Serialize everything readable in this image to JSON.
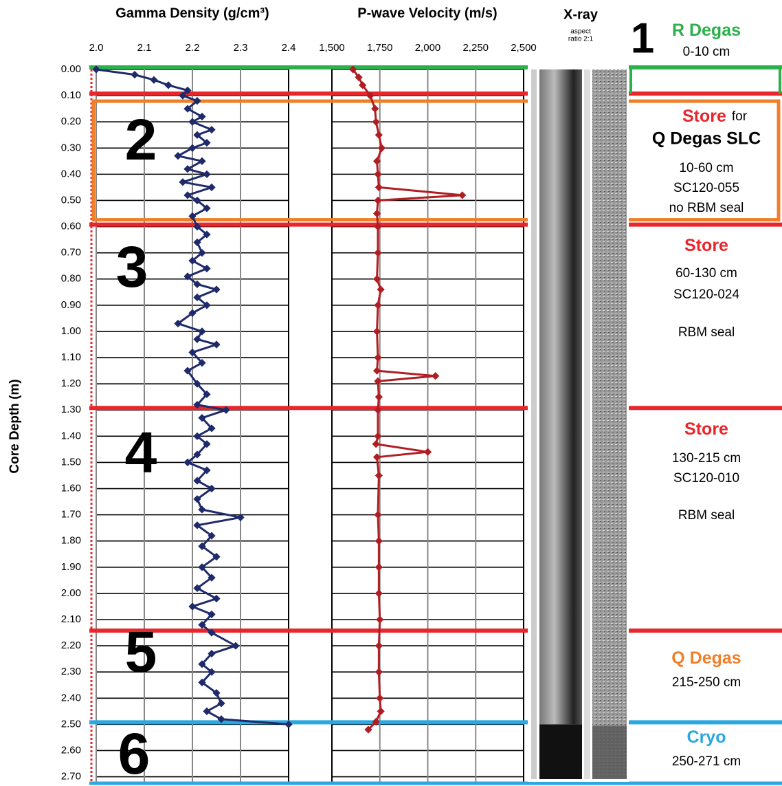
{
  "chart_data": [
    {
      "type": "line",
      "title": "Gamma Density (g/cm³)",
      "y_label": "Core Depth (m)",
      "color": "#1f2a6b",
      "xlim": [
        2.0,
        2.4
      ],
      "xticks": [
        {
          "value": 2.0,
          "label": "2.0"
        },
        2.1,
        2.2,
        2.3,
        2.4
      ],
      "ylim": [
        0,
        2.73
      ],
      "yticks": [
        {
          "value": 0,
          "label": "0.00"
        },
        {
          "value": 0.1,
          "label": "0.10"
        },
        {
          "value": 0.2,
          "label": "0.20"
        },
        {
          "value": 0.3,
          "label": "0.30"
        },
        {
          "value": 0.4,
          "label": "0.40"
        },
        {
          "value": 0.5,
          "label": "0.50"
        },
        {
          "value": 0.6,
          "label": "0.60"
        },
        {
          "value": 0.7,
          "label": "0.70"
        },
        {
          "value": 0.8,
          "label": "0.80"
        },
        {
          "value": 0.9,
          "label": "0.90"
        },
        {
          "value": 1,
          "label": "1.00"
        },
        {
          "value": 1.1,
          "label": "1.10"
        },
        {
          "value": 1.2,
          "label": "1.20"
        },
        {
          "value": 1.3,
          "label": "1.30"
        },
        {
          "value": 1.4,
          "label": "1.40"
        },
        {
          "value": 1.5,
          "label": "1.50"
        },
        {
          "value": 1.6,
          "label": "1.60"
        },
        {
          "value": 1.7,
          "label": "1.70"
        },
        {
          "value": 1.8,
          "label": "1.80"
        },
        {
          "value": 1.9,
          "label": "1.90"
        },
        {
          "value": 2,
          "label": "2.00"
        },
        {
          "value": 2.1,
          "label": "2.10"
        },
        {
          "value": 2.2,
          "label": "2.20"
        },
        {
          "value": 2.3,
          "label": "2.30"
        },
        {
          "value": 2.4,
          "label": "2.40"
        },
        {
          "value": 2.5,
          "label": "2.50"
        },
        {
          "value": 2.6,
          "label": "2.60"
        },
        {
          "value": 2.7,
          "label": "2.70"
        }
      ],
      "y": [
        0,
        0.02,
        0.04,
        0.06,
        0.08,
        0.1,
        0.12,
        0.15,
        0.18,
        0.2,
        0.23,
        0.25,
        0.28,
        0.3,
        0.33,
        0.35,
        0.38,
        0.4,
        0.43,
        0.45,
        0.48,
        0.5,
        0.53,
        0.56,
        0.6,
        0.63,
        0.66,
        0.7,
        0.73,
        0.76,
        0.79,
        0.82,
        0.84,
        0.87,
        0.9,
        0.93,
        0.97,
        1,
        1.03,
        1.05,
        1.08,
        1.12,
        1.15,
        1.2,
        1.24,
        1.28,
        1.3,
        1.33,
        1.37,
        1.4,
        1.43,
        1.47,
        1.5,
        1.53,
        1.57,
        1.6,
        1.64,
        1.68,
        1.71,
        1.74,
        1.78,
        1.82,
        1.86,
        1.9,
        1.94,
        1.98,
        2.02,
        2.05,
        2.08,
        2.12,
        2.15,
        2.2,
        2.23,
        2.27,
        2.3,
        2.34,
        2.38,
        2.42,
        2.45,
        2.48,
        2.5
      ],
      "values": [
        2.0,
        2.08,
        2.12,
        2.15,
        2.19,
        2.18,
        2.21,
        2.19,
        2.22,
        2.2,
        2.24,
        2.21,
        2.23,
        2.2,
        2.17,
        2.22,
        2.19,
        2.23,
        2.18,
        2.24,
        2.19,
        2.21,
        2.23,
        2.2,
        2.21,
        2.23,
        2.21,
        2.22,
        2.2,
        2.23,
        2.19,
        2.21,
        2.25,
        2.21,
        2.23,
        2.2,
        2.17,
        2.22,
        2.21,
        2.25,
        2.2,
        2.22,
        2.19,
        2.21,
        2.23,
        2.21,
        2.27,
        2.22,
        2.24,
        2.21,
        2.23,
        2.21,
        2.19,
        2.23,
        2.21,
        2.24,
        2.21,
        2.22,
        2.3,
        2.21,
        2.24,
        2.22,
        2.25,
        2.22,
        2.24,
        2.21,
        2.25,
        2.2,
        2.24,
        2.22,
        2.24,
        2.29,
        2.24,
        2.22,
        2.24,
        2.22,
        2.25,
        2.26,
        2.23,
        2.26,
        2.4
      ]
    },
    {
      "type": "line",
      "title": "P-wave Velocity (m/s)",
      "color": "#b01e23",
      "xlim": [
        1500,
        2500
      ],
      "xticks": [
        {
          "value": 1500,
          "label": "1,500"
        },
        {
          "value": 1750,
          "label": "1,750"
        },
        {
          "value": 2000,
          "label": "2,000"
        },
        {
          "value": 2250,
          "label": "2,250"
        },
        {
          "value": 2500,
          "label": "2,500"
        }
      ],
      "ylim": [
        0,
        2.73
      ],
      "y": [
        0,
        0.03,
        0.06,
        0.1,
        0.15,
        0.2,
        0.25,
        0.3,
        0.35,
        0.4,
        0.45,
        0.48,
        0.5,
        0.55,
        0.6,
        0.7,
        0.8,
        0.84,
        0.9,
        1,
        1.1,
        1.15,
        1.17,
        1.19,
        1.25,
        1.3,
        1.4,
        1.43,
        1.46,
        1.48,
        1.55,
        1.7,
        1.8,
        1.9,
        2,
        2.1,
        2.2,
        2.3,
        2.4,
        2.45,
        2.49,
        2.52
      ],
      "values": [
        1610,
        1640,
        1660,
        1700,
        1725,
        1730,
        1745,
        1760,
        1735,
        1740,
        1745,
        2180,
        1740,
        1735,
        1740,
        1740,
        1735,
        1755,
        1740,
        1735,
        1740,
        1735,
        2040,
        1740,
        1745,
        1740,
        1740,
        1730,
        2000,
        1735,
        1745,
        1740,
        1745,
        1745,
        1745,
        1750,
        1745,
        1745,
        1750,
        1755,
        1730,
        1690
      ]
    }
  ],
  "xray": {
    "title": "X-ray",
    "subtitle": [
      "aspect",
      "ratio 2:1"
    ]
  },
  "sections": [
    {
      "number": "1",
      "top": 0,
      "color": "#2bb14c",
      "heading": "R Degas",
      "heading_color": "#2bb14c",
      "lines": [
        "0-10 cm"
      ]
    },
    {
      "number": "2",
      "top": 0.1,
      "color": "#e8262b",
      "heading": "Store",
      "heading_color": "#e8262b",
      "heading_suffix": "for",
      "subheading": "Q Degas SLC",
      "subheading_color": "#f07f2a",
      "lines": [
        "10-60 cm",
        "SC120-055",
        "no RBM seal"
      ]
    },
    {
      "number": "3",
      "top": 0.6,
      "color": "#e8262b",
      "heading": "Store",
      "heading_color": "#e8262b",
      "lines": [
        "60-130 cm",
        "SC120-024"
      ],
      "note": "RBM seal"
    },
    {
      "number": "4",
      "top": 1.3,
      "color": "#e8262b",
      "heading": "Store",
      "heading_color": "#e8262b",
      "lines": [
        "130-215 cm",
        "SC120-010"
      ],
      "note": "RBM seal"
    },
    {
      "number": "5",
      "top": 2.15,
      "color": "#e8262b",
      "heading": "Q Degas",
      "heading_color": "#f07f2a",
      "lines": [
        "215-250 cm"
      ]
    },
    {
      "number": "6",
      "top": 2.5,
      "color": "#2aa8e0",
      "heading": "Cryo",
      "heading_color": "#2aa8e0",
      "lines": [
        "250-271 cm"
      ]
    }
  ]
}
